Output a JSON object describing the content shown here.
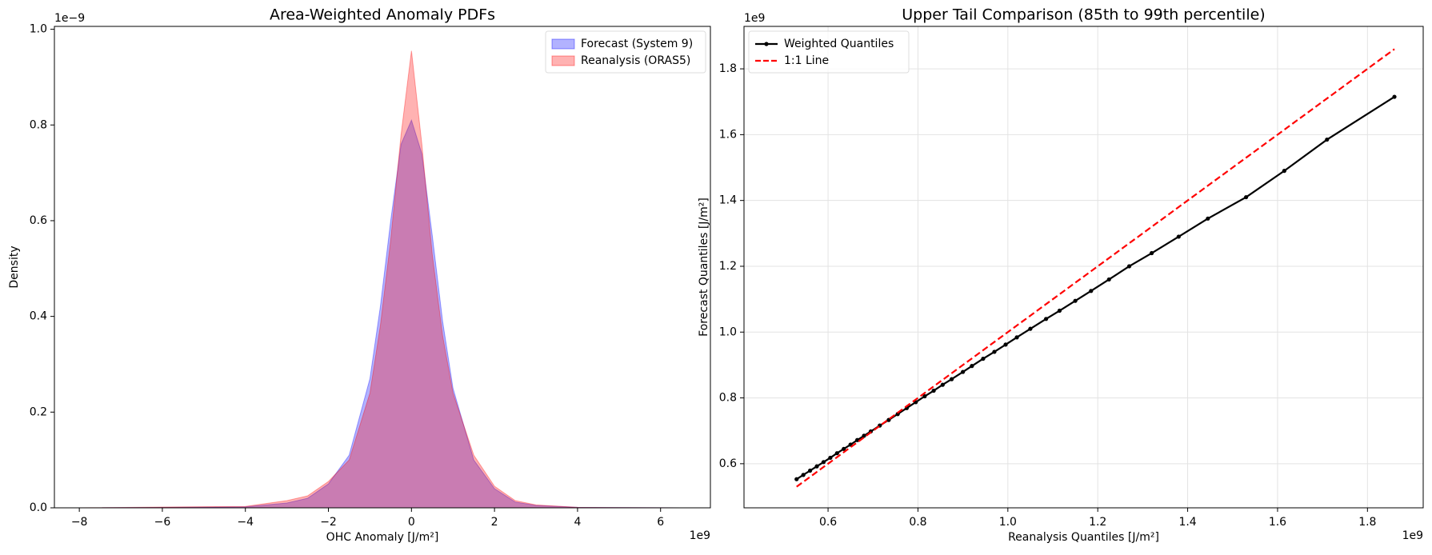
{
  "chart_data": [
    {
      "type": "area",
      "title": "Area-Weighted Anomaly PDFs",
      "xlabel": "OHC Anomaly [J/m²]",
      "ylabel": "Density",
      "x_offset": "1e9",
      "y_offset": "1e−9",
      "x": [
        -8,
        -4,
        -3,
        -2.5,
        -2,
        -1.5,
        -1,
        -0.75,
        -0.5,
        -0.25,
        0,
        0.25,
        0.5,
        0.75,
        1,
        1.5,
        2,
        2.5,
        3,
        4,
        6.5
      ],
      "series": [
        {
          "name": "Forecast (System 9)",
          "color": "#0000ff",
          "values": [
            0,
            0.002,
            0.01,
            0.02,
            0.05,
            0.11,
            0.27,
            0.42,
            0.6,
            0.76,
            0.81,
            0.74,
            0.57,
            0.39,
            0.25,
            0.1,
            0.04,
            0.012,
            0.005,
            0.001,
            0
          ]
        },
        {
          "name": "Reanalysis (ORAS5)",
          "color": "#ff0000",
          "values": [
            0,
            0.003,
            0.015,
            0.025,
            0.055,
            0.1,
            0.24,
            0.38,
            0.56,
            0.78,
            0.955,
            0.76,
            0.53,
            0.36,
            0.24,
            0.11,
            0.045,
            0.015,
            0.006,
            0.001,
            0
          ]
        }
      ],
      "xlim": [
        -8.6,
        7.2
      ],
      "ylim": [
        0,
        1.006
      ],
      "xticks": [
        {
          "value": -8,
          "label": "−8"
        },
        {
          "value": -6,
          "label": "−6"
        },
        {
          "value": -4,
          "label": "−4"
        },
        {
          "value": -2,
          "label": "−2"
        },
        0,
        2,
        4,
        6
      ],
      "yticks": [
        {
          "value": 0,
          "label": "0.0"
        },
        0.2,
        0.4,
        0.6,
        0.8,
        {
          "value": 1,
          "label": "1.0"
        }
      ],
      "grid": false,
      "legend": "upper right"
    },
    {
      "type": "line",
      "title": "Upper Tail Comparison (85th to 99th percentile)",
      "xlabel": "Reanalysis Quantiles [J/m²]",
      "ylabel": "Forecast Quantiles [J/m²]",
      "x_offset": "1e9",
      "y_offset": "1e9",
      "series": [
        {
          "name": "Weighted Quantiles",
          "color": "#000000",
          "style": "solid",
          "marker": true,
          "x": [
            0.53,
            0.545,
            0.56,
            0.575,
            0.59,
            0.605,
            0.62,
            0.635,
            0.65,
            0.665,
            0.68,
            0.695,
            0.715,
            0.735,
            0.755,
            0.775,
            0.795,
            0.815,
            0.835,
            0.855,
            0.875,
            0.9,
            0.92,
            0.945,
            0.97,
            0.995,
            1.02,
            1.05,
            1.085,
            1.115,
            1.15,
            1.185,
            1.225,
            1.27,
            1.32,
            1.38,
            1.445,
            1.53,
            1.615,
            1.71,
            1.86
          ],
          "values": [
            0.553,
            0.566,
            0.579,
            0.592,
            0.605,
            0.618,
            0.632,
            0.645,
            0.658,
            0.672,
            0.685,
            0.698,
            0.716,
            0.733,
            0.751,
            0.769,
            0.787,
            0.805,
            0.822,
            0.84,
            0.857,
            0.879,
            0.897,
            0.919,
            0.94,
            0.962,
            0.984,
            1.01,
            1.04,
            1.065,
            1.095,
            1.125,
            1.16,
            1.2,
            1.24,
            1.29,
            1.345,
            1.41,
            1.49,
            1.585,
            1.715
          ]
        },
        {
          "name": "1:1 Line",
          "color": "#ff0000",
          "style": "dashed",
          "marker": false,
          "x": [
            0.53,
            1.86
          ],
          "values": [
            0.53,
            1.86
          ]
        }
      ],
      "xlim": [
        0.413,
        1.924
      ],
      "ylim": [
        0.466,
        1.929
      ],
      "xticks": [
        0.6,
        0.8,
        {
          "value": 1,
          "label": "1.0"
        },
        1.2,
        1.4,
        1.6,
        1.8
      ],
      "yticks": [
        0.6,
        0.8,
        {
          "value": 1,
          "label": "1.0"
        },
        1.2,
        1.4,
        1.6,
        1.8
      ],
      "grid": true,
      "legend": "upper left"
    }
  ]
}
